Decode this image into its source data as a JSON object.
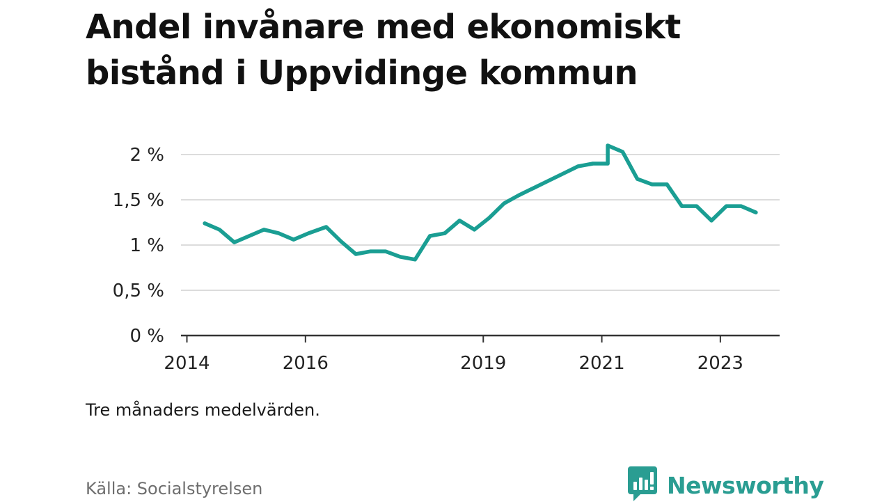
{
  "title": "Andel invånare med ekonomiskt bistånd i Uppvidinge kommun",
  "note": "Tre månaders medelvärden.",
  "source": "Källa: Socialstyrelsen",
  "brand": {
    "name": "Newsworthy",
    "icon": "newsworthy-logo-icon",
    "color": "#2a9d92"
  },
  "chart_data": {
    "type": "line",
    "title": "Andel invånare med ekonomiskt bistånd i Uppvidinge kommun",
    "xlabel": "",
    "ylabel": "",
    "xlim": [
      2013.9,
      2024.0
    ],
    "ylim": [
      0,
      2
    ],
    "x_ticks": [
      2014,
      2016,
      2019,
      2021,
      2023
    ],
    "x_tick_labels": [
      "2014",
      "2016",
      "2019",
      "2021",
      "2023"
    ],
    "y_ticks": [
      0,
      0.5,
      1,
      1.5,
      2
    ],
    "y_tick_labels": [
      "0 %",
      "0,5 %",
      "1 %",
      "1,5 %",
      "2 %"
    ],
    "grid": true,
    "line_color": "#1a9e93",
    "series": [
      {
        "points": [
          [
            2014.3,
            1.24
          ],
          [
            2014.55,
            1.17
          ],
          [
            2014.8,
            1.03
          ],
          [
            2015.05,
            1.1
          ],
          [
            2015.3,
            1.17
          ],
          [
            2015.55,
            1.13
          ],
          [
            2015.8,
            1.06
          ],
          [
            2016.05,
            1.13
          ],
          [
            2016.35,
            1.2
          ],
          [
            2016.6,
            1.04
          ],
          [
            2016.85,
            0.9
          ],
          [
            2017.1,
            0.93
          ],
          [
            2017.35,
            0.93
          ],
          [
            2017.6,
            0.87
          ],
          [
            2017.85,
            0.84
          ],
          [
            2018.1,
            1.1
          ],
          [
            2018.35,
            1.13
          ],
          [
            2018.6,
            1.27
          ],
          [
            2018.85,
            1.17
          ],
          [
            2019.1,
            1.3
          ],
          [
            2019.35,
            1.46
          ],
          [
            2019.6,
            1.55
          ],
          [
            2019.85,
            1.63
          ],
          [
            2020.1,
            1.71
          ],
          [
            2020.35,
            1.79
          ],
          [
            2020.6,
            1.87
          ],
          [
            2020.85,
            1.9
          ],
          [
            2021.1,
            1.9
          ],
          [
            2021.1,
            2.1
          ],
          [
            2021.35,
            2.03
          ],
          [
            2021.6,
            1.73
          ],
          [
            2021.85,
            1.67
          ],
          [
            2022.1,
            1.67
          ],
          [
            2022.35,
            1.43
          ],
          [
            2022.6,
            1.43
          ],
          [
            2022.85,
            1.27
          ],
          [
            2023.1,
            1.43
          ],
          [
            2023.35,
            1.43
          ],
          [
            2023.6,
            1.36
          ]
        ]
      }
    ]
  }
}
